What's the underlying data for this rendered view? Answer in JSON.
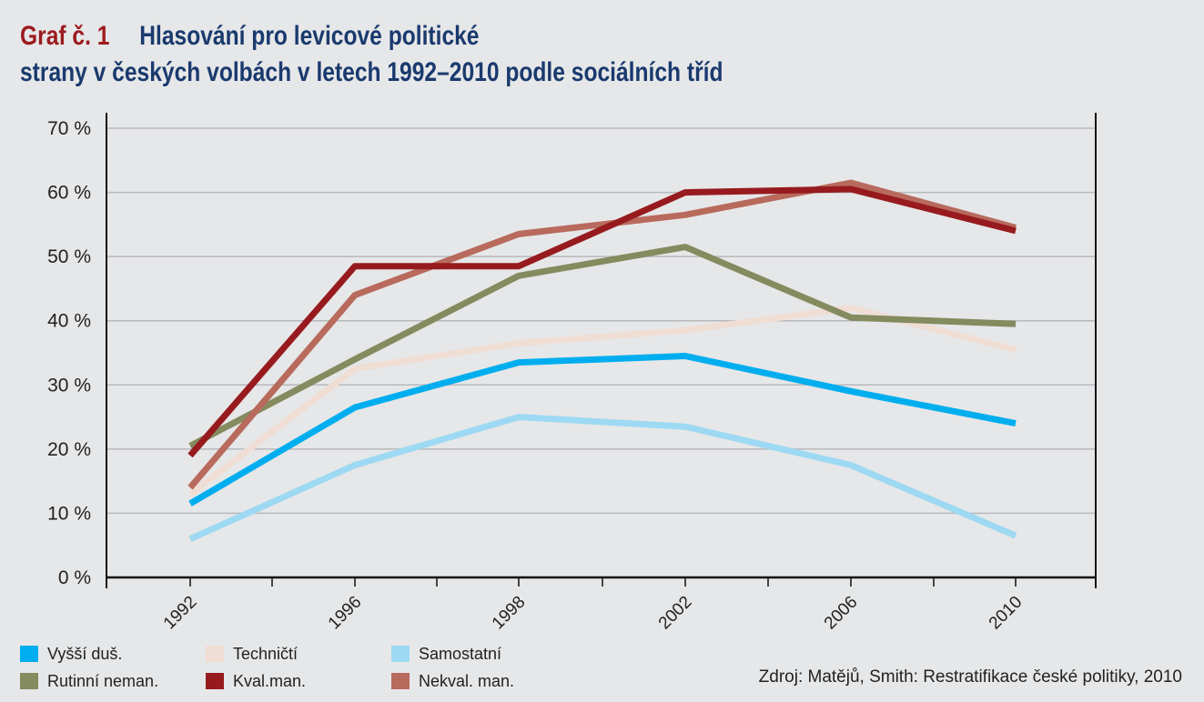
{
  "title": {
    "label": "Graf č. 1",
    "line1": "Hlasování pro levicové politické",
    "line2": "strany v českých volbách v letech 1992–2010 podle sociálních tříd"
  },
  "source": "Zdroj: Matějů, Smith: Restratifikace české politiky, 2010",
  "chart_data": {
    "type": "line",
    "categories": [
      "1992",
      "1996",
      "1998",
      "2002",
      "2006",
      "2010"
    ],
    "ylim": [
      0,
      70
    ],
    "y_ticks": [
      "0 %",
      "10 %",
      "20 %",
      "30 %",
      "40 %",
      "50 %",
      "60 %",
      "70 %"
    ],
    "grid": true,
    "legend_position": "bottom-left",
    "series": [
      {
        "name": "TechnIčtí",
        "color": "#f0ddd4",
        "values": [
          13,
          32.5,
          36.5,
          38.5,
          42,
          35.5
        ]
      },
      {
        "name": "Samostatní",
        "color": "#9dd9f3",
        "values": [
          6,
          17.5,
          25,
          23.5,
          17.5,
          6.5
        ]
      },
      {
        "name": "Vyšší duš.",
        "color": "#00aeef",
        "values": [
          11.5,
          26.5,
          33.5,
          34.5,
          29,
          24
        ]
      },
      {
        "name": "Rutinní neman.",
        "color": "#838b5f",
        "values": [
          20.5,
          34,
          47,
          51.5,
          40.5,
          39.5
        ]
      },
      {
        "name": "Nekval. man.",
        "color": "#b86a5c",
        "values": [
          14,
          44,
          53.5,
          56.5,
          61.5,
          54.5
        ]
      },
      {
        "name": "Kval.man.",
        "color": "#971b1e",
        "values": [
          19,
          48.5,
          48.5,
          60,
          60.5,
          54
        ]
      }
    ]
  },
  "legend": {
    "row1": [
      {
        "label": "Vyšší duš.",
        "color": "#00aeef"
      },
      {
        "label": "Techničtí",
        "color": "#f0ddd4"
      },
      {
        "label": "Samostatní",
        "color": "#9dd9f3"
      }
    ],
    "row2": [
      {
        "label": "Rutinní neman.",
        "color": "#838b5f"
      },
      {
        "label": "Kval.man.",
        "color": "#971b1e"
      },
      {
        "label": "Nekval. man.",
        "color": "#b86a5c"
      }
    ]
  }
}
